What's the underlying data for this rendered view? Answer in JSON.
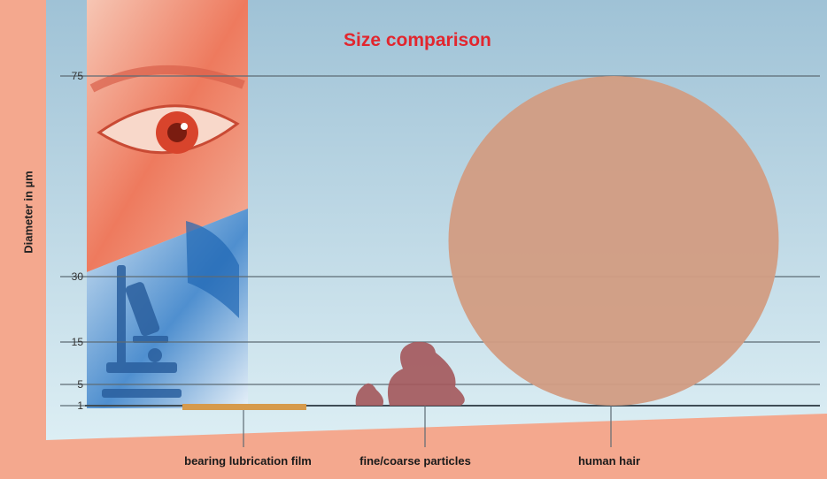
{
  "chart_data": {
    "type": "scatter",
    "title": "Size comparison",
    "ylabel": "Diameter in µm",
    "xlabel": "",
    "yticks": [
      1,
      5,
      15,
      30,
      75
    ],
    "categories": [
      "bearing lubrication film",
      "fine/coarse particles",
      "human hair"
    ],
    "values": [
      1,
      15,
      75
    ],
    "grid": true,
    "colors": {
      "background": "#f4a88e",
      "plot_top": "#9fc2d6",
      "plot_bottom": "#dceef4",
      "title": "#e2262e",
      "film": "#d69a4c",
      "particles": "#a55a5e",
      "hair": "#d29c82"
    }
  }
}
